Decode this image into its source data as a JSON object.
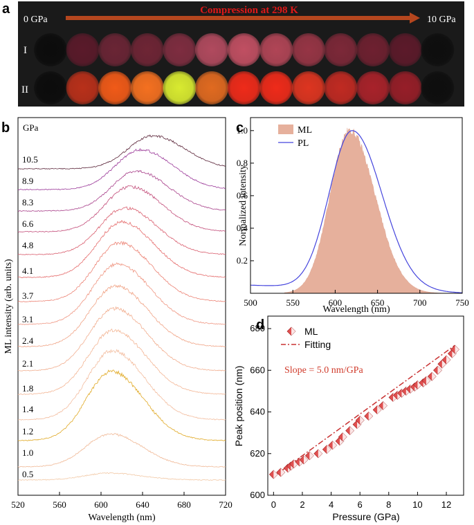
{
  "colors": {
    "banner_bg": "#1a1a1a",
    "arrow": "#b5461e",
    "arrow_title": "#e01818",
    "ml_fill": "#e6b09c",
    "pl_line": "#4444dd",
    "fit_line": "#c83030",
    "marker": "#e05050",
    "slope_text": "#d03a2a"
  },
  "panel_a": {
    "label": "a",
    "title": "Compression at 298 K",
    "start_label": "0 GPa",
    "end_label": "10 GPa",
    "rows": [
      {
        "label": "I",
        "colors": [
          "#0c0c0c",
          "#5a1a2a",
          "#6a2535",
          "#6e2535",
          "#7e2d40",
          "#b04a5e",
          "#c04f62",
          "#b04556",
          "#963545",
          "#7c2838",
          "#6e2030",
          "#5c1a2a",
          "#0e0e0e"
        ]
      },
      {
        "label": "II",
        "colors": [
          "#0c0c0c",
          "#b8301a",
          "#f05a18",
          "#f47020",
          "#d8ea30",
          "#e06a20",
          "#ee2b1a",
          "#ee2b1a",
          "#dd3520",
          "#c02a22",
          "#a8222a",
          "#961e28",
          "#0e0e0e"
        ]
      }
    ]
  },
  "chart_data": [
    {
      "panel": "b",
      "type": "line",
      "title": "",
      "xlabel": "Wavelength (nm)",
      "ylabel": "ML intensity  (arb. units)",
      "xlim": [
        520,
        720
      ],
      "xticks": [
        520,
        560,
        600,
        640,
        680,
        720
      ],
      "legend_header": "GPa",
      "series": [
        {
          "name": "0.5",
          "peak": 608,
          "amplitude": 0.08,
          "color": "#f2c8a5"
        },
        {
          "name": "1.0",
          "peak": 609,
          "amplitude": 0.38,
          "color": "#f0b895"
        },
        {
          "name": "1.2",
          "peak": 610,
          "amplitude": 0.8,
          "color": "#e0a822"
        },
        {
          "name": "1.4",
          "peak": 611,
          "amplitude": 0.8,
          "color": "#f3bc9e"
        },
        {
          "name": "1.8",
          "peak": 612,
          "amplitude": 0.74,
          "color": "#f3b594"
        },
        {
          "name": "2.1",
          "peak": 613,
          "amplitude": 0.72,
          "color": "#f1ad8e"
        },
        {
          "name": "2.4",
          "peak": 614,
          "amplitude": 0.7,
          "color": "#f0a284"
        },
        {
          "name": "3.1",
          "peak": 616,
          "amplitude": 0.7,
          "color": "#ef9682"
        },
        {
          "name": "3.7",
          "peak": 618,
          "amplitude": 0.68,
          "color": "#ec8375"
        },
        {
          "name": "4.1",
          "peak": 620,
          "amplitude": 0.64,
          "color": "#e56c6c"
        },
        {
          "name": "4.8",
          "peak": 623,
          "amplitude": 0.54,
          "color": "#d95e6e"
        },
        {
          "name": "6.6",
          "peak": 628,
          "amplitude": 0.52,
          "color": "#c24b78"
        },
        {
          "name": "8.3",
          "peak": 634,
          "amplitude": 0.46,
          "color": "#a8408a"
        },
        {
          "name": "8.9",
          "peak": 638,
          "amplitude": 0.46,
          "color": "#9a3898"
        },
        {
          "name": "10.5",
          "peak": 650,
          "amplitude": 0.38,
          "color": "#5a2438"
        }
      ]
    },
    {
      "panel": "c",
      "type": "area",
      "title": "",
      "xlabel": "Wavelength (nm)",
      "ylabel": "Normalized intensity",
      "xlim": [
        500,
        750
      ],
      "ylim": [
        0,
        1.08
      ],
      "xticks": [
        500,
        550,
        600,
        650,
        700,
        750
      ],
      "yticks": [
        0.2,
        0.4,
        0.6,
        0.8,
        1.0
      ],
      "yticklabels": [
        "0.2",
        "0.4",
        "0.6",
        "0.8",
        "1.0"
      ],
      "series": [
        {
          "name": "ML",
          "kind": "area",
          "peak": 617,
          "values_peak": 1.0
        },
        {
          "name": "PL",
          "kind": "line",
          "peak": 620,
          "values_peak": 1.0,
          "baseline_at_500": 0.05
        }
      ]
    },
    {
      "panel": "d",
      "type": "scatter",
      "title": "",
      "xlabel": "Pressure (GPa)",
      "ylabel": "Peak position (nm)",
      "xlim": [
        -0.4,
        13.2
      ],
      "ylim": [
        600,
        686
      ],
      "xticks": [
        0,
        2,
        4,
        6,
        8,
        10,
        12
      ],
      "yticks": [
        600,
        620,
        640,
        660,
        680
      ],
      "annotation": "Slope = 5.0 nm/GPa",
      "series": [
        {
          "name": "ML",
          "kind": "markers",
          "x": [
            0.0,
            0.5,
            1.0,
            1.2,
            1.4,
            1.8,
            2.1,
            2.5,
            3.1,
            3.7,
            4.1,
            4.6,
            4.8,
            5.3,
            5.8,
            6.0,
            6.6,
            7.2,
            7.6,
            8.3,
            8.6,
            8.9,
            9.2,
            9.5,
            9.8,
            10.0,
            10.4,
            10.6,
            11.0,
            11.4,
            11.7,
            12.0,
            12.4,
            12.6
          ],
          "y": [
            610,
            611,
            613,
            614,
            615,
            616,
            617,
            619,
            620,
            622,
            624,
            626,
            628,
            631,
            634,
            636,
            638,
            641,
            643,
            647,
            648,
            649,
            650,
            651,
            652,
            653,
            654,
            655,
            657,
            660,
            663,
            665,
            668,
            670
          ]
        },
        {
          "name": "Fitting",
          "kind": "line",
          "x": [
            0,
            12.6
          ],
          "y": [
            609,
            672
          ]
        }
      ]
    }
  ]
}
